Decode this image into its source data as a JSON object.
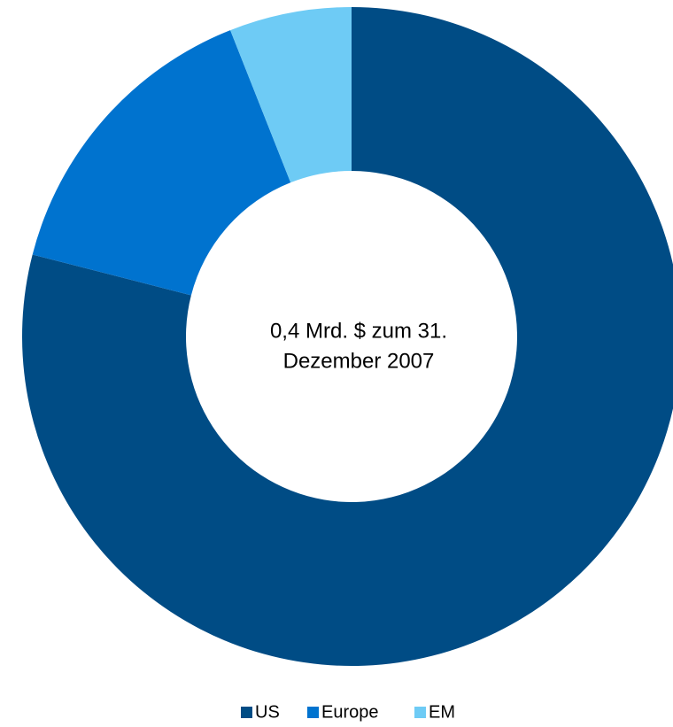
{
  "chart_data": {
    "type": "donut",
    "center_label": [
      "0,4 Mrd. $ zum 31.",
      "Dezember 2007"
    ],
    "categories": [
      "US",
      "Europe",
      "EM"
    ],
    "values": [
      79,
      15,
      6
    ],
    "colors": [
      "#004c85",
      "#0073cf",
      "#6ecbf5"
    ],
    "legend": "bottom"
  }
}
